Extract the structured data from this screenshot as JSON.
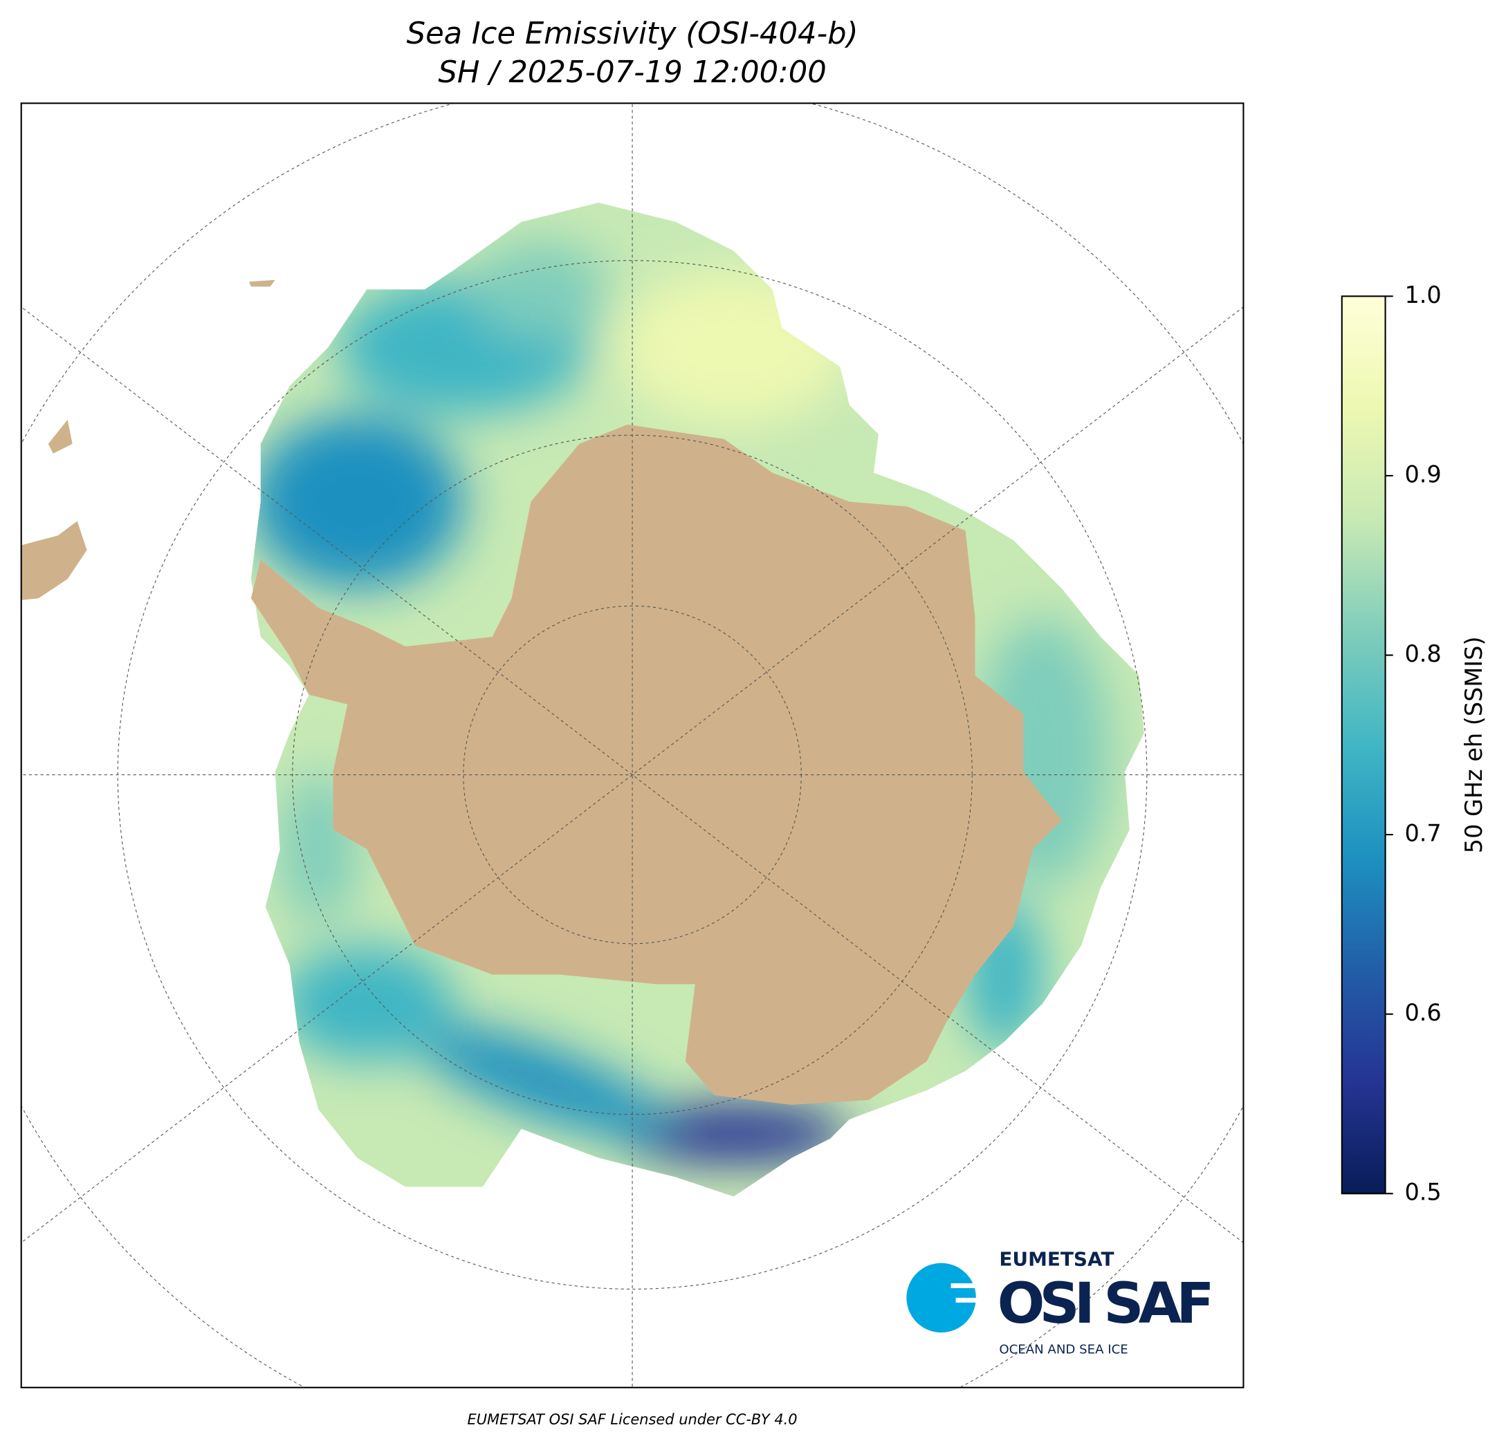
{
  "title": "Sea Ice Emissivity (OSI-404-b)",
  "subtitle": "SH / 2025-07-19 12:00:00",
  "colorbar": {
    "label": "50 GHz eh (SSMIS)",
    "lim": [
      0.5,
      1.0
    ],
    "ticks": [
      0.5,
      0.6,
      0.7,
      0.8,
      0.9,
      {
        "value": 1.0,
        "label": "1.0"
      }
    ],
    "colors": [
      "#081d58",
      "#253494",
      "#225ea8",
      "#1d91c0",
      "#41b6c4",
      "#7fcdbb",
      "#c7e9b4",
      "#edf8b1",
      "#ffffd9"
    ]
  },
  "logo": {
    "brand": "EUMETSAT",
    "name": "OSI SAF",
    "tagline": "OCEAN AND SEA ICE"
  },
  "footer": "EUMETSAT OSI SAF Licensed under CC-BY 4.0"
}
